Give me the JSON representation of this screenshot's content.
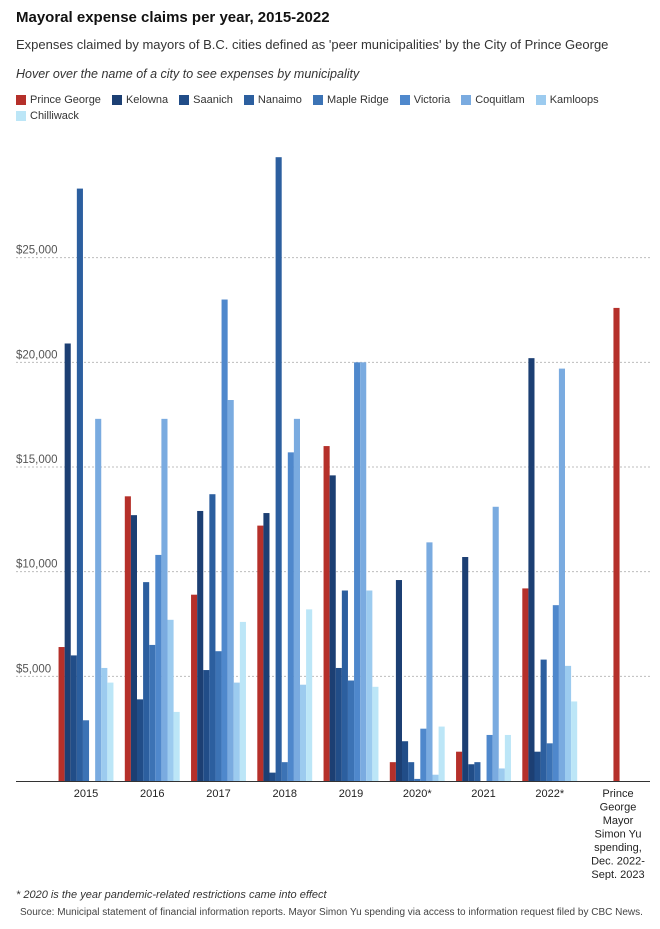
{
  "chart_data": {
    "type": "bar",
    "title": "Mayoral expense claims per year, 2015-2022",
    "subtitle": "Expenses claimed by mayors of B.C. cities defined as 'peer municipalities' by the City of Prince George",
    "instruction": "Hover over the name of a city to see expenses by municipality",
    "categories": [
      "2015",
      "2016",
      "2017",
      "2018",
      "2019",
      "2020*",
      "2021",
      "2022*",
      "Prince George Mayor Simon Yu spending, Dec. 2022-Sept. 2023"
    ],
    "yticks": [
      "$5,000",
      "$10,000",
      "$15,000",
      "$20,000",
      "$25,000"
    ],
    "ylim": [
      0,
      30000
    ],
    "grid": true,
    "legend_position": "top",
    "series": [
      {
        "name": "Prince George",
        "color": "#b5302a",
        "values": [
          6400,
          13600,
          8900,
          12200,
          16000,
          900,
          1400,
          9200,
          22600
        ]
      },
      {
        "name": "Kelowna",
        "color": "#1c3f73",
        "values": [
          20900,
          12700,
          12900,
          12800,
          14600,
          9600,
          10700,
          20200,
          null
        ]
      },
      {
        "name": "Saanich",
        "color": "#214d88",
        "values": [
          6000,
          3900,
          5300,
          400,
          5400,
          1900,
          800,
          1400,
          null
        ]
      },
      {
        "name": "Nanaimo",
        "color": "#2c5f9f",
        "values": [
          28300,
          9500,
          13700,
          29800,
          9100,
          900,
          900,
          5800,
          null
        ]
      },
      {
        "name": "Maple Ridge",
        "color": "#3c73b5",
        "values": [
          2900,
          6500,
          6200,
          900,
          4800,
          100,
          0,
          1800,
          null
        ]
      },
      {
        "name": "Victoria",
        "color": "#4f88cc",
        "values": [
          0,
          10800,
          23000,
          15700,
          20000,
          2500,
          2200,
          8400,
          null
        ]
      },
      {
        "name": "Coquitlam",
        "color": "#7aabe0",
        "values": [
          17300,
          17300,
          18200,
          17300,
          20000,
          11400,
          13100,
          19700,
          null
        ]
      },
      {
        "name": "Kamloops",
        "color": "#9ccbef",
        "values": [
          5400,
          7700,
          4700,
          4600,
          9100,
          300,
          600,
          5500,
          null
        ]
      },
      {
        "name": "Chilliwack",
        "color": "#bce6f7",
        "values": [
          4700,
          3300,
          7600,
          8200,
          4500,
          2600,
          2200,
          3800,
          null
        ]
      }
    ]
  },
  "footnote": "* 2020 is the year pandemic-related restrictions came into effect",
  "source": "Source: Municipal statement of financial information reports. Mayor Simon Yu spending via access to information request filed by CBC News."
}
